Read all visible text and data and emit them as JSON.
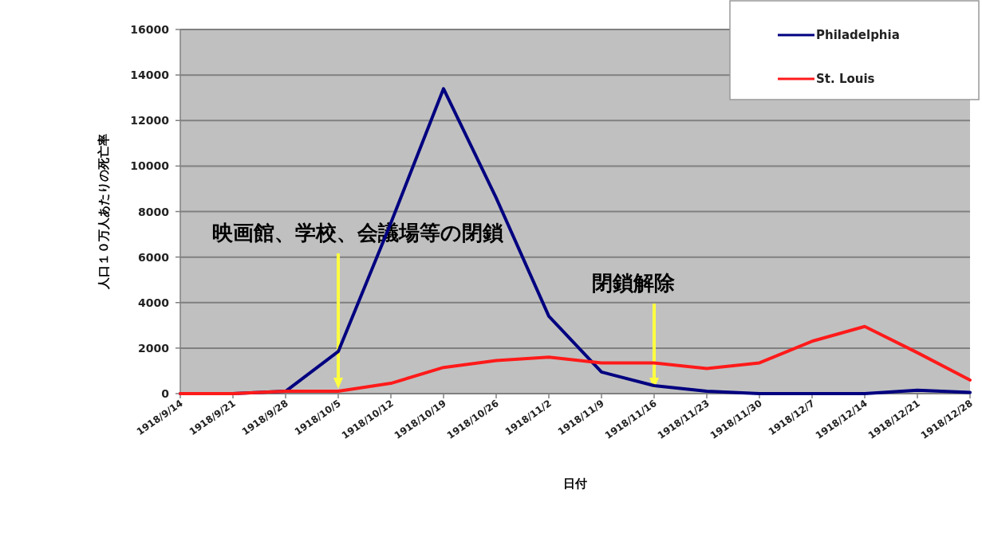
{
  "chart_data": {
    "type": "line",
    "xlabel": "日付",
    "ylabel": "人口１０万人あたりの死亡率",
    "categories": [
      "1918/9/14",
      "1918/9/21",
      "1918/9/28",
      "1918/10/5",
      "1918/10/12",
      "1918/10/19",
      "1918/10/26",
      "1918/11/2",
      "1918/11/9",
      "1918/11/16",
      "1918/11/23",
      "1918/11/30",
      "1918/12/7",
      "1918/12/14",
      "1918/12/21",
      "1918/12/28"
    ],
    "series": [
      {
        "name": "Philadelphia",
        "color": "#000080",
        "values": [
          0,
          0,
          100,
          1850,
          7500,
          13400,
          8600,
          3400,
          950,
          350,
          100,
          0,
          0,
          0,
          150,
          50
        ]
      },
      {
        "name": "St. Louis",
        "color": "#ff1a1a",
        "values": [
          0,
          0,
          100,
          100,
          450,
          1150,
          1450,
          1600,
          1350,
          1350,
          1100,
          1350,
          2300,
          2950,
          1800,
          600
        ]
      }
    ],
    "annotations": [
      "映画館、学校、会議場等の閉鎖",
      "閉鎖解除"
    ],
    "ylim": [
      0,
      16000
    ],
    "yticks": [
      0,
      2000,
      4000,
      6000,
      8000,
      10000,
      12000,
      14000,
      16000
    ],
    "grid": "y",
    "legend": "top right"
  }
}
